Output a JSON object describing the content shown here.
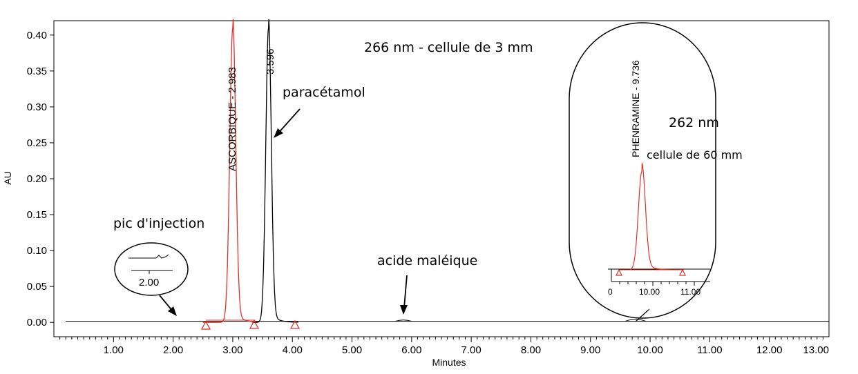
{
  "chart_data": {
    "type": "line",
    "xlabel": "Minutes",
    "ylabel": "AU",
    "xlim": [
      0,
      13.0
    ],
    "ylim": [
      -0.02,
      0.42
    ],
    "x_ticks": [
      "1.00",
      "2.00",
      "3.00",
      "4.00",
      "5.00",
      "6.00",
      "7.00",
      "8.00",
      "9.00",
      "10.00",
      "11.00",
      "12.00",
      "13.00"
    ],
    "y_ticks": [
      "0.00",
      "0.05",
      "0.10",
      "0.15",
      "0.20",
      "0.25",
      "0.30",
      "0.35",
      "0.40"
    ],
    "series": [
      {
        "color": "#e0302a",
        "peaks": [
          {
            "x": 3.0,
            "y": 0.41,
            "w": 0.07
          }
        ],
        "base": [
          2.55,
          3.38
        ]
      },
      {
        "color": "#000000",
        "peaks": [
          {
            "x": 3.6,
            "y": 0.41,
            "w": 0.065
          }
        ],
        "base": [
          3.38,
          4.05
        ]
      }
    ],
    "peak_labels": [
      {
        "x": 2.98,
        "text": "ASCORBIQUE - 2.983"
      },
      {
        "x": 3.6,
        "text": "3.596"
      }
    ],
    "annotations": [
      {
        "text": "266 nm - cellule de 3 mm"
      },
      {
        "text": "paracétamol"
      },
      {
        "text": "pic d'injection"
      },
      {
        "text": "acide maléique"
      },
      {
        "text": "262 nm"
      },
      {
        "text": "cellule de 60 mm"
      }
    ],
    "injection_inset": {
      "tick": "2.00"
    },
    "phenramine_inset": {
      "peak_label": "PHENRAMINE - 9.736",
      "x_ticks": [
        "10.00",
        "11.00"
      ],
      "peak": {
        "x": 9.736,
        "w": 0.12
      }
    }
  }
}
